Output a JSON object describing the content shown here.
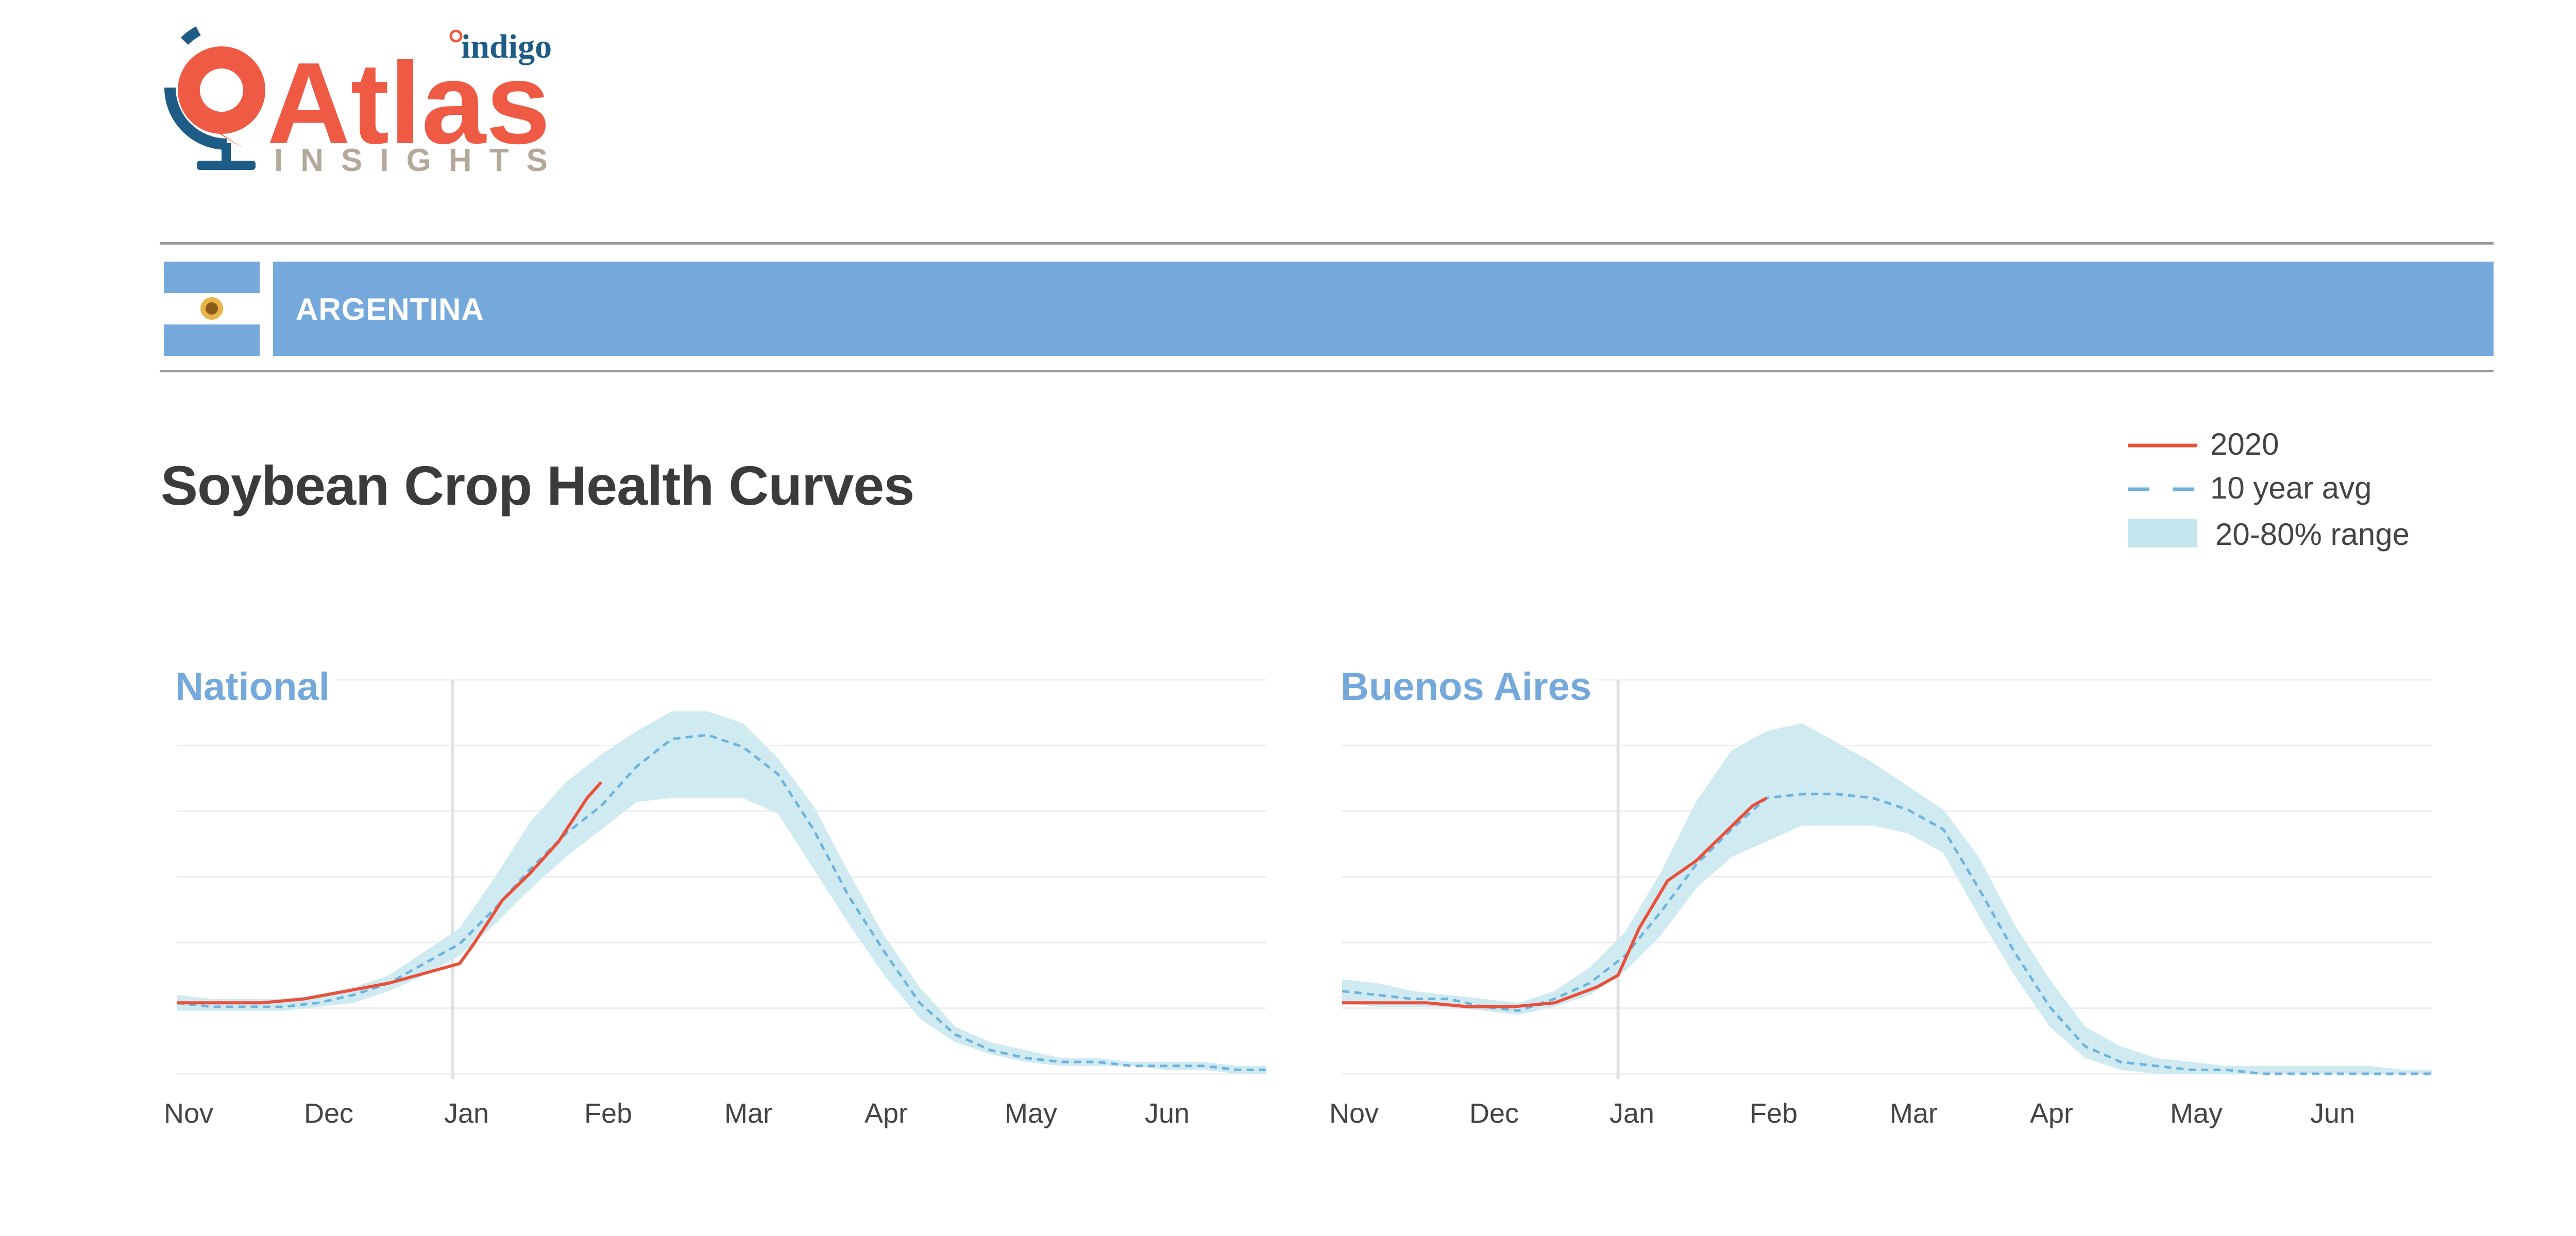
{
  "brand": {
    "name": "Atlas",
    "sub": "indigo",
    "tagline": "INSIGHTS"
  },
  "country": {
    "name": "ARGENTINA"
  },
  "page_title": "Soybean Crop Health Curves",
  "legend": [
    {
      "label": "2020",
      "kind": "line",
      "color": "#e8503a"
    },
    {
      "label": "10 year avg",
      "kind": "dash",
      "color": "#6fb3dd"
    },
    {
      "label": "20-80% range",
      "kind": "band",
      "color": "#c4e6ef"
    }
  ],
  "colors": {
    "accent": "#76a9db",
    "line_2020": "#e8503a",
    "avg": "#6fb3dd",
    "band": "#cde9f0",
    "logo_red": "#ef5a45",
    "logo_blue": "#1e5c86"
  },
  "chart_data": [
    {
      "type": "line",
      "title": "National",
      "x_tick_labels": [
        "Nov",
        "Dec",
        "Jan",
        "Feb",
        "Mar",
        "Apr",
        "May",
        "Jun"
      ],
      "xlim": [
        0,
        7.7
      ],
      "ylim": [
        0,
        1
      ],
      "grid": true,
      "reference_line_x": 1.95,
      "series": [
        {
          "name": "2020",
          "kind": "line",
          "x": [
            0,
            0.3,
            0.6,
            0.9,
            1.2,
            1.5,
            1.8,
            2.0,
            2.1,
            2.3,
            2.5,
            2.7,
            2.9,
            3.0
          ],
          "y": [
            0.18,
            0.18,
            0.18,
            0.19,
            0.21,
            0.23,
            0.26,
            0.28,
            0.33,
            0.44,
            0.51,
            0.59,
            0.7,
            0.74
          ]
        },
        {
          "name": "10 year avg",
          "kind": "dash",
          "x": [
            0,
            0.25,
            0.5,
            0.75,
            1.0,
            1.25,
            1.5,
            1.75,
            2.0,
            2.25,
            2.5,
            2.75,
            3.0,
            3.25,
            3.5,
            3.75,
            4.0,
            4.25,
            4.5,
            4.75,
            5.0,
            5.25,
            5.5,
            5.75,
            6.0,
            6.25,
            6.5,
            6.75,
            7.0,
            7.25,
            7.5,
            7.7
          ],
          "y": [
            0.18,
            0.17,
            0.17,
            0.17,
            0.18,
            0.2,
            0.23,
            0.28,
            0.33,
            0.42,
            0.52,
            0.61,
            0.68,
            0.78,
            0.85,
            0.86,
            0.83,
            0.76,
            0.62,
            0.45,
            0.31,
            0.18,
            0.1,
            0.06,
            0.04,
            0.03,
            0.03,
            0.02,
            0.02,
            0.02,
            0.01,
            0.01
          ]
        },
        {
          "name": "20-80% range",
          "kind": "band",
          "x": [
            0,
            0.25,
            0.5,
            0.75,
            1.0,
            1.25,
            1.5,
            1.75,
            2.0,
            2.25,
            2.5,
            2.75,
            3.0,
            3.25,
            3.5,
            3.75,
            4.0,
            4.25,
            4.5,
            4.75,
            5.0,
            5.25,
            5.5,
            5.75,
            6.0,
            6.25,
            6.5,
            6.75,
            7.0,
            7.25,
            7.5,
            7.7
          ],
          "low": [
            0.16,
            0.16,
            0.16,
            0.16,
            0.17,
            0.18,
            0.21,
            0.25,
            0.3,
            0.38,
            0.47,
            0.55,
            0.62,
            0.69,
            0.7,
            0.7,
            0.7,
            0.66,
            0.52,
            0.38,
            0.25,
            0.14,
            0.08,
            0.05,
            0.03,
            0.02,
            0.02,
            0.02,
            0.01,
            0.01,
            0.0,
            0.0
          ],
          "high": [
            0.2,
            0.19,
            0.19,
            0.19,
            0.2,
            0.22,
            0.25,
            0.31,
            0.37,
            0.5,
            0.64,
            0.74,
            0.81,
            0.87,
            0.92,
            0.92,
            0.89,
            0.8,
            0.68,
            0.51,
            0.35,
            0.22,
            0.12,
            0.08,
            0.06,
            0.04,
            0.04,
            0.03,
            0.03,
            0.03,
            0.02,
            0.02
          ]
        }
      ]
    },
    {
      "type": "line",
      "title": "Buenos Aires",
      "x_tick_labels": [
        "Nov",
        "Dec",
        "Jan",
        "Feb",
        "Mar",
        "Apr",
        "May",
        "Jun"
      ],
      "xlim": [
        0,
        7.7
      ],
      "ylim": [
        0,
        1
      ],
      "grid": true,
      "reference_line_x": 1.95,
      "series": [
        {
          "name": "2020",
          "kind": "line",
          "x": [
            0,
            0.3,
            0.6,
            0.9,
            1.2,
            1.5,
            1.8,
            1.95,
            2.1,
            2.3,
            2.5,
            2.7,
            2.9,
            3.0
          ],
          "y": [
            0.18,
            0.18,
            0.18,
            0.17,
            0.17,
            0.18,
            0.22,
            0.25,
            0.37,
            0.49,
            0.54,
            0.61,
            0.68,
            0.7
          ]
        },
        {
          "name": "10 year avg",
          "kind": "dash",
          "x": [
            0,
            0.25,
            0.5,
            0.75,
            1.0,
            1.25,
            1.5,
            1.75,
            2.0,
            2.25,
            2.5,
            2.75,
            3.0,
            3.25,
            3.5,
            3.75,
            4.0,
            4.25,
            4.5,
            4.75,
            5.0,
            5.25,
            5.5,
            5.75,
            6.0,
            6.25,
            6.5,
            6.75,
            7.0,
            7.25,
            7.5,
            7.7
          ],
          "y": [
            0.21,
            0.2,
            0.19,
            0.19,
            0.17,
            0.16,
            0.19,
            0.23,
            0.3,
            0.41,
            0.53,
            0.62,
            0.7,
            0.71,
            0.71,
            0.7,
            0.67,
            0.62,
            0.47,
            0.31,
            0.17,
            0.07,
            0.03,
            0.02,
            0.01,
            0.01,
            0.0,
            0.0,
            0.0,
            0.0,
            0.0,
            0.0
          ]
        },
        {
          "name": "20-80% range",
          "kind": "band",
          "x": [
            0,
            0.25,
            0.5,
            0.75,
            1.0,
            1.25,
            1.5,
            1.75,
            2.0,
            2.25,
            2.5,
            2.75,
            3.0,
            3.25,
            3.5,
            3.75,
            4.0,
            4.25,
            4.5,
            4.75,
            5.0,
            5.25,
            5.5,
            5.75,
            6.0,
            6.25,
            6.5,
            6.75,
            7.0,
            7.25,
            7.5,
            7.7
          ],
          "low": [
            0.18,
            0.17,
            0.17,
            0.17,
            0.16,
            0.15,
            0.17,
            0.2,
            0.26,
            0.35,
            0.47,
            0.55,
            0.59,
            0.63,
            0.63,
            0.63,
            0.61,
            0.56,
            0.4,
            0.25,
            0.12,
            0.04,
            0.01,
            0.0,
            0.0,
            0.0,
            0.0,
            0.0,
            0.0,
            0.0,
            0.0,
            0.0
          ],
          "high": [
            0.24,
            0.23,
            0.21,
            0.2,
            0.19,
            0.18,
            0.21,
            0.27,
            0.36,
            0.51,
            0.69,
            0.82,
            0.87,
            0.89,
            0.84,
            0.79,
            0.73,
            0.67,
            0.55,
            0.38,
            0.24,
            0.12,
            0.07,
            0.04,
            0.03,
            0.02,
            0.02,
            0.02,
            0.02,
            0.02,
            0.01,
            0.01
          ]
        }
      ]
    }
  ]
}
